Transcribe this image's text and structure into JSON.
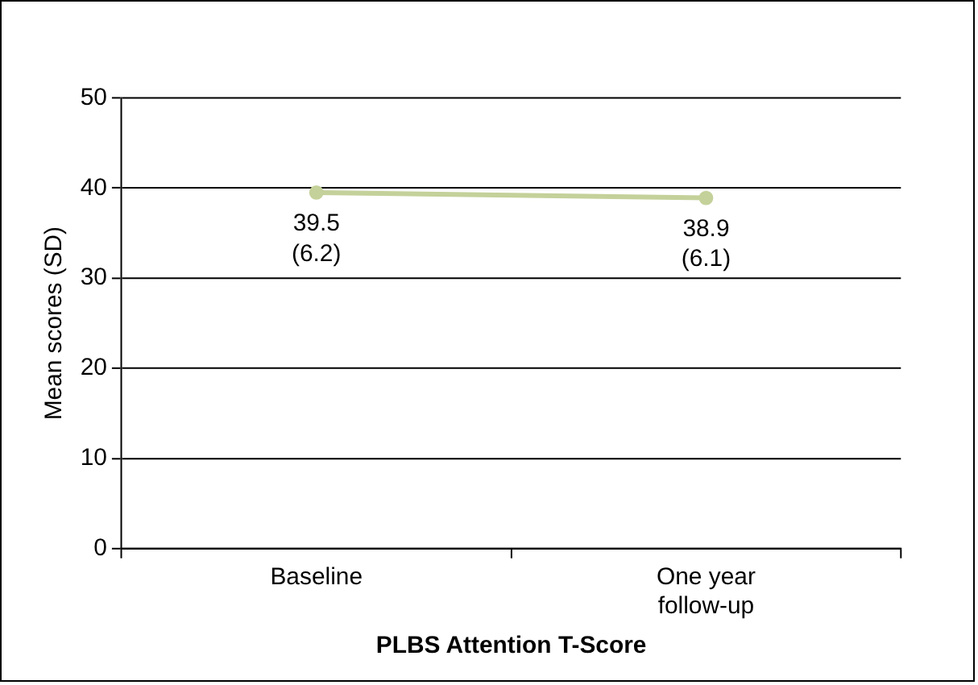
{
  "chart_data": {
    "type": "line",
    "xlabel": "PLBS Attention T-Score",
    "ylabel": "Mean scores (SD)",
    "categories": [
      "Baseline",
      "One year follow-up"
    ],
    "series": [
      {
        "color": "#c4d19a",
        "values": [
          39.5,
          38.9
        ],
        "value_labels": [
          "39.5\n(6.2)",
          "38.9\n(6.1)"
        ]
      }
    ],
    "ylim": [
      0,
      50
    ],
    "yticks": [
      0,
      10,
      20,
      30,
      40,
      50
    ],
    "grid": "y",
    "legend": false,
    "marker": "circle",
    "line_style": "solid"
  }
}
